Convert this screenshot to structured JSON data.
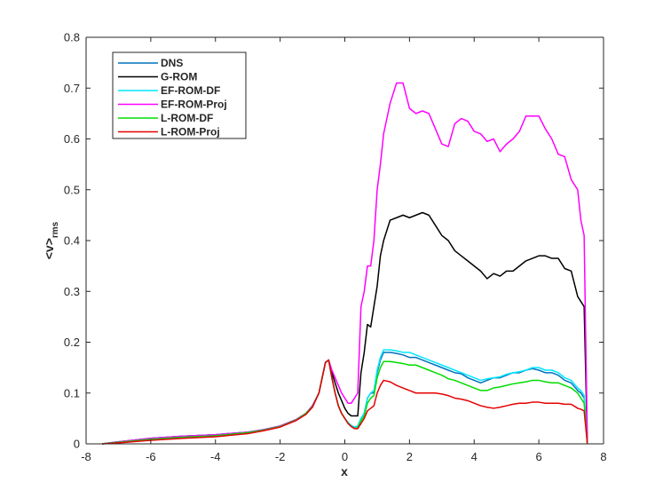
{
  "chart_data": {
    "type": "line",
    "xlabel": "x",
    "ylabel_main": "<v>",
    "ylabel_sub": "rms",
    "xlim": [
      -8,
      8
    ],
    "ylim": [
      0,
      0.8
    ],
    "xticks": [
      "-8",
      "-6",
      "-4",
      "-2",
      "0",
      "2",
      "4",
      "6",
      "8"
    ],
    "yticks": [
      "0",
      "0.1",
      "0.2",
      "0.3",
      "0.4",
      "0.5",
      "0.6",
      "0.7",
      "0.8"
    ],
    "grid": false,
    "legend_position": "top-left",
    "series": [
      {
        "name": "DNS",
        "color": "#0072bd",
        "x": [
          -7.5,
          -7,
          -6,
          -5,
          -4,
          -3,
          -2.5,
          -2,
          -1.5,
          -1.2,
          -1,
          -0.8,
          -0.6,
          -0.5,
          -0.4,
          -0.3,
          -0.2,
          -0.1,
          0,
          0.1,
          0.2,
          0.3,
          0.4,
          0.5,
          0.6,
          0.7,
          0.8,
          0.9,
          1,
          1.1,
          1.2,
          1.4,
          1.6,
          1.8,
          2,
          2.2,
          2.4,
          2.6,
          2.8,
          3,
          3.2,
          3.4,
          3.6,
          3.8,
          4,
          4.2,
          4.4,
          4.6,
          4.8,
          5,
          5.2,
          5.4,
          5.6,
          5.8,
          6,
          6.2,
          6.4,
          6.6,
          6.8,
          7,
          7.2,
          7.3,
          7.4,
          7.5
        ],
        "y": [
          0,
          0.004,
          0.011,
          0.015,
          0.018,
          0.023,
          0.028,
          0.035,
          0.048,
          0.06,
          0.075,
          0.1,
          0.16,
          0.165,
          0.13,
          0.1,
          0.075,
          0.06,
          0.05,
          0.042,
          0.036,
          0.033,
          0.035,
          0.05,
          0.06,
          0.09,
          0.1,
          0.1,
          0.14,
          0.165,
          0.18,
          0.18,
          0.178,
          0.175,
          0.17,
          0.17,
          0.165,
          0.16,
          0.155,
          0.15,
          0.145,
          0.14,
          0.138,
          0.13,
          0.125,
          0.12,
          0.125,
          0.13,
          0.13,
          0.135,
          0.14,
          0.14,
          0.145,
          0.148,
          0.145,
          0.14,
          0.14,
          0.135,
          0.125,
          0.12,
          0.105,
          0.1,
          0.09,
          0
        ]
      },
      {
        "name": "G-ROM",
        "color": "#000000",
        "x": [
          -7.5,
          -7,
          -6,
          -5,
          -4,
          -3,
          -2.5,
          -2,
          -1.5,
          -1.2,
          -1,
          -0.8,
          -0.6,
          -0.5,
          -0.4,
          -0.3,
          -0.2,
          -0.1,
          0,
          0.1,
          0.2,
          0.3,
          0.4,
          0.5,
          0.6,
          0.7,
          0.8,
          0.9,
          1,
          1.1,
          1.2,
          1.4,
          1.6,
          1.8,
          2,
          2.2,
          2.4,
          2.6,
          2.8,
          3,
          3.2,
          3.4,
          3.6,
          3.8,
          4,
          4.2,
          4.4,
          4.6,
          4.8,
          5,
          5.2,
          5.4,
          5.6,
          5.8,
          6,
          6.2,
          6.4,
          6.6,
          6.8,
          7,
          7.2,
          7.3,
          7.4,
          7.5
        ],
        "y": [
          0,
          0.004,
          0.011,
          0.015,
          0.018,
          0.023,
          0.028,
          0.035,
          0.048,
          0.06,
          0.075,
          0.1,
          0.16,
          0.165,
          0.14,
          0.12,
          0.1,
          0.085,
          0.07,
          0.06,
          0.055,
          0.055,
          0.055,
          0.14,
          0.18,
          0.235,
          0.23,
          0.27,
          0.31,
          0.37,
          0.4,
          0.44,
          0.445,
          0.45,
          0.445,
          0.45,
          0.455,
          0.45,
          0.43,
          0.41,
          0.4,
          0.38,
          0.37,
          0.36,
          0.35,
          0.34,
          0.325,
          0.335,
          0.33,
          0.34,
          0.34,
          0.35,
          0.36,
          0.365,
          0.37,
          0.37,
          0.365,
          0.365,
          0.345,
          0.34,
          0.29,
          0.28,
          0.27,
          0
        ]
      },
      {
        "name": "EF-ROM-DF",
        "color": "#00e6ff",
        "x": [
          -7.5,
          -7,
          -6,
          -5,
          -4,
          -3,
          -2.5,
          -2,
          -1.5,
          -1.2,
          -1,
          -0.8,
          -0.6,
          -0.5,
          -0.4,
          -0.3,
          -0.2,
          -0.1,
          0,
          0.1,
          0.2,
          0.3,
          0.4,
          0.5,
          0.6,
          0.7,
          0.8,
          0.9,
          1,
          1.1,
          1.2,
          1.4,
          1.6,
          1.8,
          2,
          2.2,
          2.4,
          2.6,
          2.8,
          3,
          3.2,
          3.4,
          3.6,
          3.8,
          4,
          4.2,
          4.4,
          4.6,
          4.8,
          5,
          5.2,
          5.4,
          5.6,
          5.8,
          6,
          6.2,
          6.4,
          6.6,
          6.8,
          7,
          7.2,
          7.3,
          7.4,
          7.5
        ],
        "y": [
          0,
          0.004,
          0.011,
          0.015,
          0.018,
          0.023,
          0.028,
          0.035,
          0.048,
          0.06,
          0.075,
          0.1,
          0.16,
          0.165,
          0.13,
          0.1,
          0.075,
          0.06,
          0.05,
          0.042,
          0.036,
          0.033,
          0.035,
          0.05,
          0.06,
          0.09,
          0.1,
          0.105,
          0.145,
          0.17,
          0.185,
          0.185,
          0.183,
          0.18,
          0.18,
          0.175,
          0.17,
          0.165,
          0.16,
          0.155,
          0.15,
          0.145,
          0.14,
          0.135,
          0.13,
          0.125,
          0.128,
          0.13,
          0.132,
          0.137,
          0.14,
          0.142,
          0.145,
          0.15,
          0.15,
          0.145,
          0.145,
          0.14,
          0.13,
          0.125,
          0.11,
          0.105,
          0.095,
          0
        ]
      },
      {
        "name": "EF-ROM-Proj",
        "color": "#ff00ff",
        "x": [
          -7.5,
          -7,
          -6,
          -5,
          -4,
          -3,
          -2.5,
          -2,
          -1.5,
          -1.2,
          -1,
          -0.8,
          -0.6,
          -0.5,
          -0.4,
          -0.3,
          -0.2,
          -0.1,
          0,
          0.1,
          0.2,
          0.3,
          0.4,
          0.5,
          0.6,
          0.7,
          0.8,
          0.9,
          1,
          1.1,
          1.2,
          1.4,
          1.6,
          1.8,
          2,
          2.2,
          2.4,
          2.6,
          2.8,
          3,
          3.2,
          3.4,
          3.6,
          3.8,
          4,
          4.2,
          4.4,
          4.6,
          4.8,
          5,
          5.2,
          5.4,
          5.6,
          5.8,
          6,
          6.2,
          6.4,
          6.6,
          6.8,
          7,
          7.2,
          7.3,
          7.4,
          7.5
        ],
        "y": [
          0,
          0.004,
          0.011,
          0.015,
          0.018,
          0.023,
          0.028,
          0.035,
          0.048,
          0.06,
          0.075,
          0.1,
          0.16,
          0.165,
          0.145,
          0.13,
          0.115,
          0.1,
          0.09,
          0.08,
          0.08,
          0.09,
          0.1,
          0.27,
          0.3,
          0.35,
          0.35,
          0.4,
          0.5,
          0.55,
          0.61,
          0.67,
          0.71,
          0.71,
          0.66,
          0.65,
          0.655,
          0.65,
          0.62,
          0.59,
          0.585,
          0.63,
          0.64,
          0.635,
          0.615,
          0.61,
          0.595,
          0.6,
          0.575,
          0.59,
          0.6,
          0.615,
          0.645,
          0.645,
          0.645,
          0.62,
          0.6,
          0.57,
          0.565,
          0.52,
          0.5,
          0.44,
          0.41,
          0
        ]
      },
      {
        "name": "L-ROM-DF",
        "color": "#00dd00",
        "x": [
          -7.5,
          -7,
          -6,
          -5,
          -4,
          -3,
          -2.5,
          -2,
          -1.5,
          -1.2,
          -1,
          -0.8,
          -0.6,
          -0.5,
          -0.4,
          -0.3,
          -0.2,
          -0.1,
          0,
          0.1,
          0.2,
          0.3,
          0.4,
          0.5,
          0.6,
          0.7,
          0.8,
          0.9,
          1,
          1.1,
          1.2,
          1.4,
          1.6,
          1.8,
          2,
          2.2,
          2.4,
          2.6,
          2.8,
          3,
          3.2,
          3.4,
          3.6,
          3.8,
          4,
          4.2,
          4.4,
          4.6,
          4.8,
          5,
          5.2,
          5.4,
          5.6,
          5.8,
          6,
          6.2,
          6.4,
          6.6,
          6.8,
          7,
          7.2,
          7.3,
          7.4,
          7.5
        ],
        "y": [
          0,
          0.003,
          0.009,
          0.013,
          0.016,
          0.022,
          0.027,
          0.034,
          0.047,
          0.06,
          0.073,
          0.1,
          0.16,
          0.165,
          0.13,
          0.1,
          0.075,
          0.06,
          0.05,
          0.04,
          0.034,
          0.03,
          0.032,
          0.045,
          0.055,
          0.08,
          0.09,
          0.095,
          0.13,
          0.15,
          0.162,
          0.162,
          0.16,
          0.158,
          0.155,
          0.155,
          0.15,
          0.145,
          0.14,
          0.135,
          0.128,
          0.125,
          0.12,
          0.115,
          0.11,
          0.105,
          0.105,
          0.11,
          0.112,
          0.115,
          0.118,
          0.12,
          0.122,
          0.125,
          0.125,
          0.122,
          0.12,
          0.12,
          0.115,
          0.11,
          0.1,
          0.09,
          0.08,
          0
        ]
      },
      {
        "name": "L-ROM-Proj",
        "color": "#e60000",
        "x": [
          -7.5,
          -7,
          -6,
          -5,
          -4,
          -3,
          -2.5,
          -2,
          -1.5,
          -1.2,
          -1,
          -0.8,
          -0.6,
          -0.5,
          -0.4,
          -0.3,
          -0.2,
          -0.1,
          0,
          0.1,
          0.2,
          0.3,
          0.4,
          0.5,
          0.6,
          0.7,
          0.8,
          0.9,
          1,
          1.1,
          1.2,
          1.4,
          1.6,
          1.8,
          2,
          2.2,
          2.4,
          2.6,
          2.8,
          3,
          3.2,
          3.4,
          3.6,
          3.8,
          4,
          4.2,
          4.4,
          4.6,
          4.8,
          5,
          5.2,
          5.4,
          5.6,
          5.8,
          6,
          6.2,
          6.4,
          6.6,
          6.8,
          7,
          7.2,
          7.3,
          7.4,
          7.5
        ],
        "y": [
          0,
          0.002,
          0.007,
          0.011,
          0.014,
          0.02,
          0.026,
          0.033,
          0.046,
          0.058,
          0.072,
          0.1,
          0.16,
          0.165,
          0.13,
          0.1,
          0.075,
          0.06,
          0.05,
          0.04,
          0.034,
          0.03,
          0.03,
          0.04,
          0.05,
          0.065,
          0.07,
          0.075,
          0.1,
          0.115,
          0.125,
          0.122,
          0.115,
          0.11,
          0.105,
          0.1,
          0.1,
          0.1,
          0.1,
          0.098,
          0.095,
          0.09,
          0.088,
          0.085,
          0.08,
          0.075,
          0.072,
          0.07,
          0.072,
          0.075,
          0.078,
          0.08,
          0.08,
          0.082,
          0.082,
          0.08,
          0.08,
          0.08,
          0.078,
          0.078,
          0.07,
          0.068,
          0.065,
          0
        ]
      }
    ]
  }
}
